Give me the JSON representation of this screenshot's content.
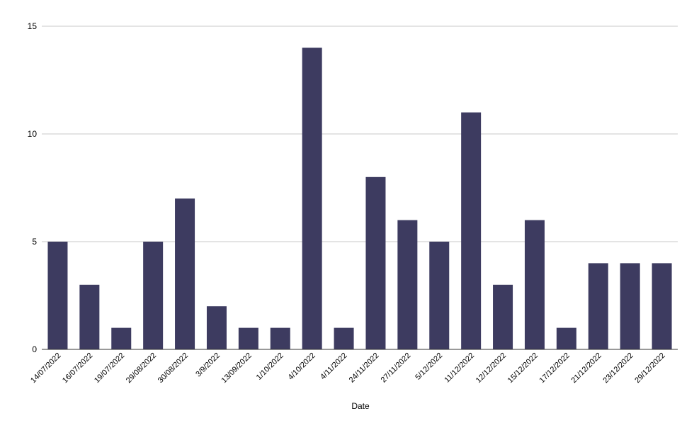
{
  "chart_data": {
    "type": "bar",
    "title": "",
    "xlabel": "Date",
    "ylabel": "",
    "categories": [
      "14/07/2022",
      "16/07/2022",
      "19/07/2022",
      "29/08/2022",
      "30/08/2022",
      "3/9/2022",
      "13/09/2022",
      "1/10/2022",
      "4/10/2022",
      "4/11/2022",
      "24/11/2022",
      "27/11/2022",
      "5/12/2022",
      "11/12/2022",
      "12/12/2022",
      "15/12/2022",
      "17/12/2022",
      "21/12/2022",
      "23/12/2022",
      "29/12/2022"
    ],
    "values": [
      5,
      3,
      1,
      5,
      7,
      2,
      1,
      1,
      14,
      1,
      8,
      6,
      5,
      11,
      3,
      6,
      1,
      4,
      4,
      4
    ],
    "ylim": [
      0,
      15
    ],
    "yticks": [
      0,
      5,
      10,
      15
    ],
    "grid": true,
    "legend": "none",
    "bar_color": "#3d3b60"
  }
}
